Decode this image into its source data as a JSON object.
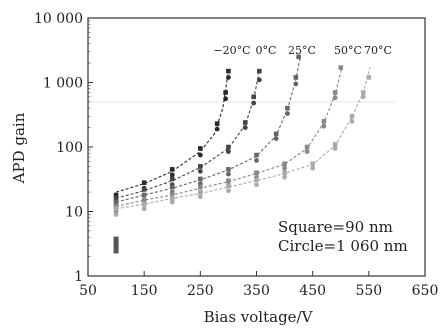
{
  "chart_data": {
    "type": "scatter",
    "xlabel": "Bias voltage/V",
    "ylabel": "APD gain",
    "xlim": [
      50,
      650
    ],
    "ylim": [
      1,
      10000
    ],
    "y_scale": "log",
    "x_ticks": [
      "50",
      "150",
      "250",
      "350",
      "450",
      "550",
      "650"
    ],
    "x_tick_values": [
      50,
      150,
      250,
      350,
      450,
      550,
      650
    ],
    "y_ticks": [
      "1",
      "10",
      "100",
      "1 000",
      "10 000"
    ],
    "y_tick_values": [
      1,
      10,
      100,
      1000,
      10000
    ],
    "grid": false,
    "annotations": [
      "Square=90 nm",
      "Circle=1 060 nm"
    ],
    "series": [
      {
        "label": "−20°C",
        "color": "#2a2a2a",
        "squares": [
          [
            100,
            18
          ],
          [
            150,
            28
          ],
          [
            200,
            45
          ],
          [
            250,
            95
          ],
          [
            280,
            230
          ],
          [
            295,
            700
          ],
          [
            300,
            1500
          ]
        ],
        "circles": [
          [
            100,
            15
          ],
          [
            150,
            23
          ],
          [
            200,
            37
          ],
          [
            250,
            75
          ],
          [
            280,
            190
          ],
          [
            295,
            560
          ],
          [
            300,
            1200
          ]
        ],
        "fit": [
          [
            100,
            20
          ],
          [
            150,
            27
          ],
          [
            200,
            42
          ],
          [
            250,
            85
          ],
          [
            275,
            160
          ],
          [
            290,
            400
          ],
          [
            300,
            1500
          ]
        ]
      },
      {
        "label": "0°C",
        "color": "#444444",
        "squares": [
          [
            100,
            16
          ],
          [
            150,
            22
          ],
          [
            200,
            32
          ],
          [
            250,
            50
          ],
          [
            300,
            100
          ],
          [
            330,
            240
          ],
          [
            345,
            600
          ],
          [
            355,
            1500
          ]
        ],
        "circles": [
          [
            100,
            13
          ],
          [
            150,
            18
          ],
          [
            200,
            26
          ],
          [
            250,
            42
          ],
          [
            300,
            85
          ],
          [
            330,
            200
          ],
          [
            345,
            480
          ],
          [
            355,
            1100
          ]
        ],
        "fit": [
          [
            100,
            16
          ],
          [
            150,
            21
          ],
          [
            200,
            30
          ],
          [
            250,
            48
          ],
          [
            300,
            95
          ],
          [
            330,
            220
          ],
          [
            345,
            550
          ],
          [
            355,
            1500
          ]
        ]
      },
      {
        "label": "25°C",
        "color": "#666666",
        "squares": [
          [
            100,
            14
          ],
          [
            150,
            18
          ],
          [
            200,
            24
          ],
          [
            250,
            32
          ],
          [
            300,
            45
          ],
          [
            350,
            75
          ],
          [
            385,
            160
          ],
          [
            405,
            400
          ],
          [
            420,
            1200
          ],
          [
            425,
            2500
          ]
        ],
        "circles": [
          [
            100,
            12
          ],
          [
            150,
            15
          ],
          [
            200,
            20
          ],
          [
            250,
            27
          ],
          [
            300,
            38
          ],
          [
            350,
            62
          ],
          [
            385,
            135
          ],
          [
            405,
            330
          ],
          [
            420,
            950
          ]
        ],
        "fit": [
          [
            100,
            14
          ],
          [
            150,
            18
          ],
          [
            200,
            23
          ],
          [
            250,
            31
          ],
          [
            300,
            44
          ],
          [
            350,
            72
          ],
          [
            385,
            150
          ],
          [
            405,
            380
          ],
          [
            420,
            1100
          ],
          [
            428,
            2500
          ]
        ]
      },
      {
        "label": "50°C",
        "color": "#888888",
        "squares": [
          [
            100,
            12
          ],
          [
            150,
            15
          ],
          [
            200,
            19
          ],
          [
            250,
            24
          ],
          [
            300,
            30
          ],
          [
            350,
            40
          ],
          [
            400,
            55
          ],
          [
            440,
            100
          ],
          [
            470,
            250
          ],
          [
            490,
            700
          ],
          [
            500,
            1700
          ]
        ],
        "circles": [
          [
            100,
            10
          ],
          [
            150,
            13
          ],
          [
            200,
            16
          ],
          [
            250,
            20
          ],
          [
            300,
            26
          ],
          [
            350,
            34
          ],
          [
            400,
            47
          ],
          [
            440,
            85
          ],
          [
            470,
            210
          ],
          [
            490,
            580
          ]
        ],
        "fit": [
          [
            100,
            12
          ],
          [
            150,
            15
          ],
          [
            200,
            18
          ],
          [
            250,
            23
          ],
          [
            300,
            29
          ],
          [
            350,
            39
          ],
          [
            400,
            54
          ],
          [
            440,
            95
          ],
          [
            470,
            240
          ],
          [
            490,
            650
          ],
          [
            502,
            1700
          ]
        ]
      },
      {
        "label": "70°C",
        "color": "#aaaaaa",
        "squares": [
          [
            100,
            11
          ],
          [
            150,
            13
          ],
          [
            200,
            16
          ],
          [
            250,
            20
          ],
          [
            300,
            25
          ],
          [
            350,
            31
          ],
          [
            400,
            40
          ],
          [
            450,
            55
          ],
          [
            490,
            110
          ],
          [
            520,
            300
          ],
          [
            540,
            700
          ],
          [
            550,
            1200
          ]
        ],
        "circles": [
          [
            100,
            9
          ],
          [
            150,
            11
          ],
          [
            200,
            14
          ],
          [
            250,
            17
          ],
          [
            300,
            21
          ],
          [
            350,
            26
          ],
          [
            400,
            34
          ],
          [
            450,
            47
          ],
          [
            490,
            95
          ],
          [
            520,
            250
          ],
          [
            540,
            600
          ]
        ],
        "fit": [
          [
            100,
            11
          ],
          [
            150,
            13
          ],
          [
            200,
            16
          ],
          [
            250,
            19
          ],
          [
            300,
            24
          ],
          [
            350,
            30
          ],
          [
            400,
            39
          ],
          [
            450,
            54
          ],
          [
            490,
            105
          ],
          [
            520,
            290
          ],
          [
            540,
            700
          ],
          [
            552,
            1700
          ]
        ]
      }
    ],
    "series_label_x": [
      232,
      266,
      302,
      348,
      378
    ],
    "outliers": [
      [
        100,
        3.8
      ],
      [
        100,
        3.4
      ],
      [
        100,
        3.0
      ],
      [
        100,
        2.7
      ],
      [
        100,
        2.4
      ]
    ]
  }
}
